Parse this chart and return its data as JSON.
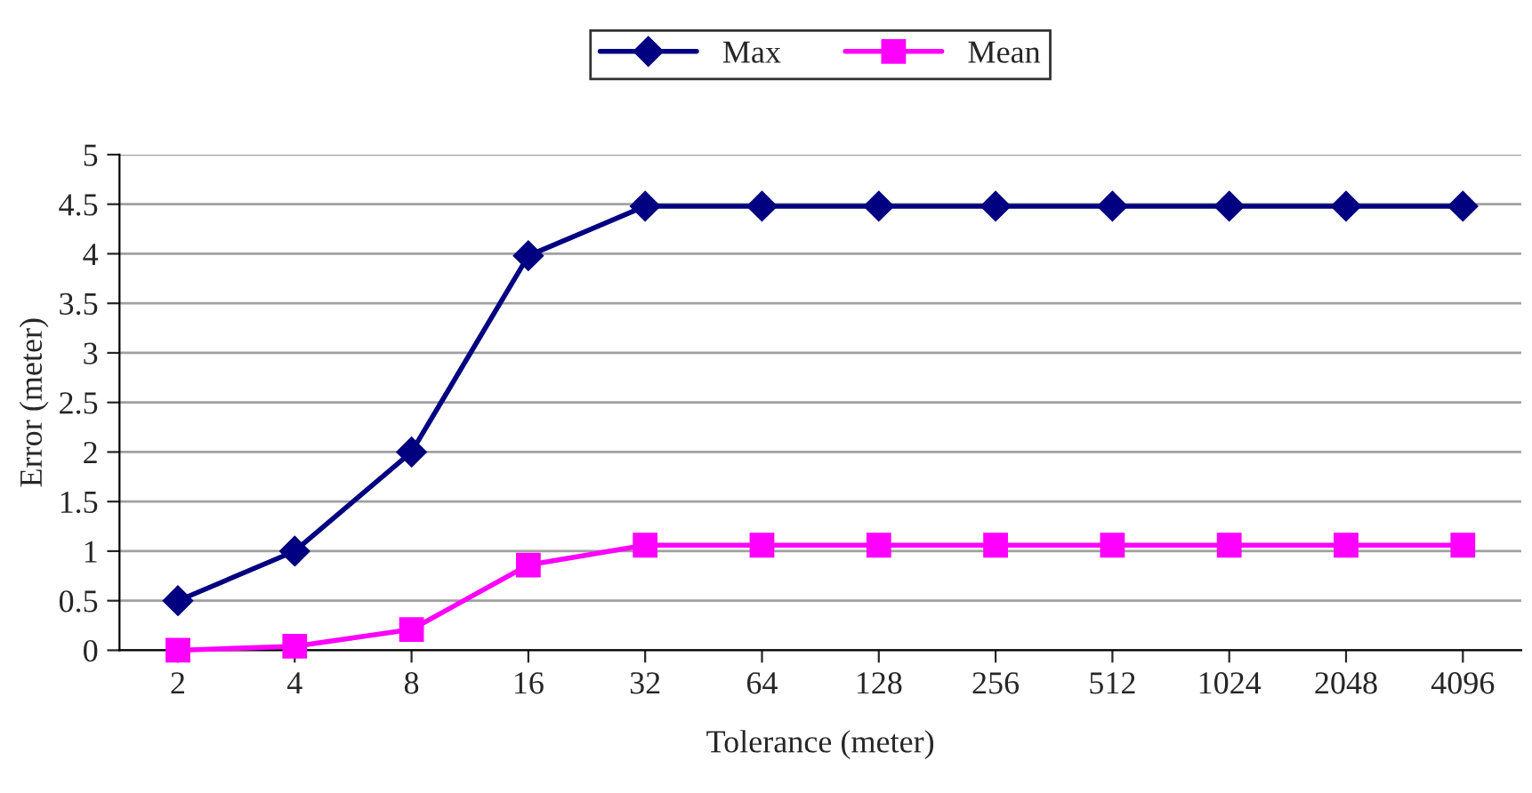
{
  "chart_data": {
    "type": "line",
    "xlabel": "Tolerance (meter)",
    "ylabel": "Error (meter)",
    "categories": [
      "2",
      "4",
      "8",
      "16",
      "32",
      "64",
      "128",
      "256",
      "512",
      "1024",
      "2048",
      "4096"
    ],
    "series": [
      {
        "name": "Max",
        "color": "#000080",
        "marker": "diamond",
        "values": [
          0.5,
          1,
          2,
          3.98,
          4.48,
          4.48,
          4.48,
          4.48,
          4.48,
          4.48,
          4.48,
          4.48
        ]
      },
      {
        "name": "Mean",
        "color": "#ff00ff",
        "marker": "square",
        "values": [
          0,
          0.04,
          0.21,
          0.86,
          1.06,
          1.06,
          1.06,
          1.06,
          1.06,
          1.06,
          1.06,
          1.06
        ]
      }
    ],
    "ylim": [
      0,
      5
    ],
    "yticks": [
      0,
      0.5,
      1,
      1.5,
      2,
      2.5,
      3,
      3.5,
      4,
      4.5,
      5
    ],
    "grid": "y",
    "legend": "top",
    "line_style": "solid"
  }
}
